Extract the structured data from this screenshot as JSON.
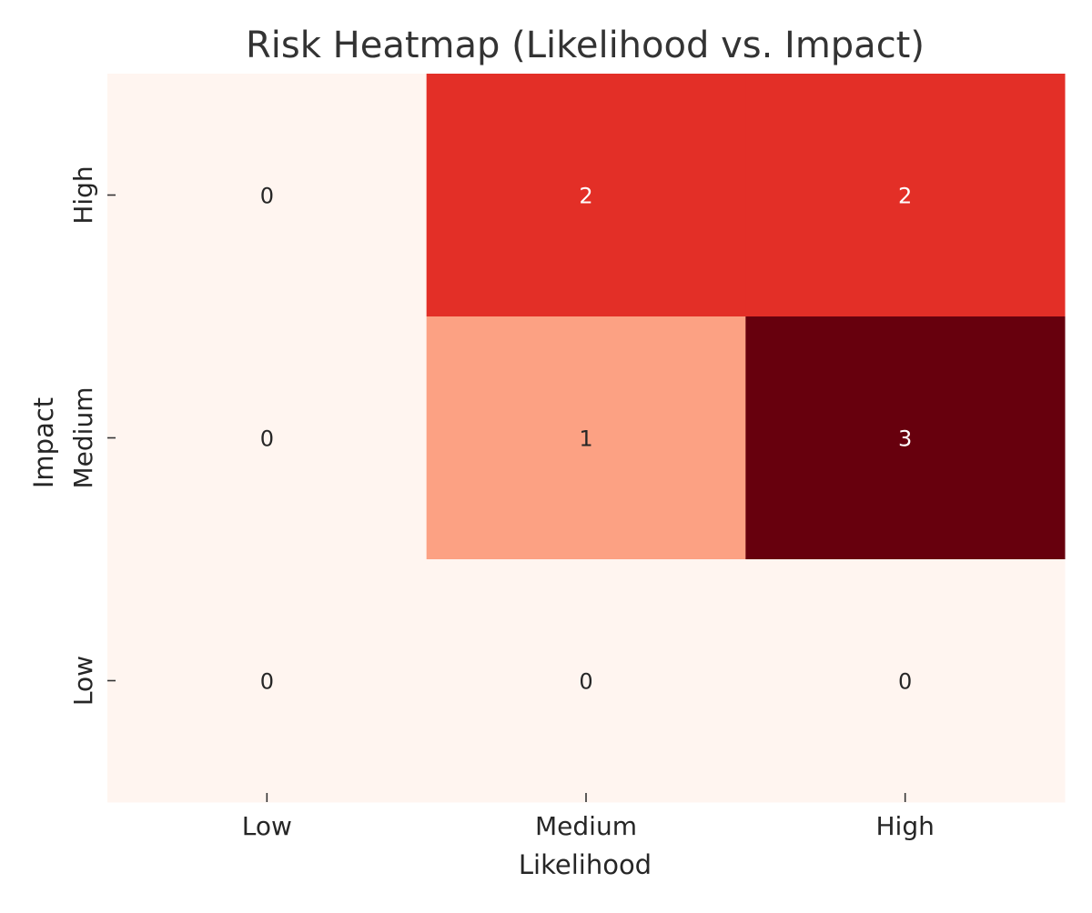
{
  "chart_data": {
    "type": "heatmap",
    "title": "Risk Heatmap (Likelihood vs. Impact)",
    "xlabel": "Likelihood",
    "ylabel": "Impact",
    "x_categories": [
      "Low",
      "Medium",
      "High"
    ],
    "y_categories": [
      "High",
      "Medium",
      "Low"
    ],
    "values": [
      [
        0,
        2,
        2
      ],
      [
        0,
        1,
        3
      ],
      [
        0,
        0,
        0
      ]
    ],
    "colormap": "Reds",
    "value_range": [
      0,
      3
    ],
    "colorbar": false,
    "grid": false,
    "colors": {
      "0": "#fff5f0",
      "1": "#fca183",
      "2": "#e32f27",
      "3": "#67000d"
    }
  }
}
